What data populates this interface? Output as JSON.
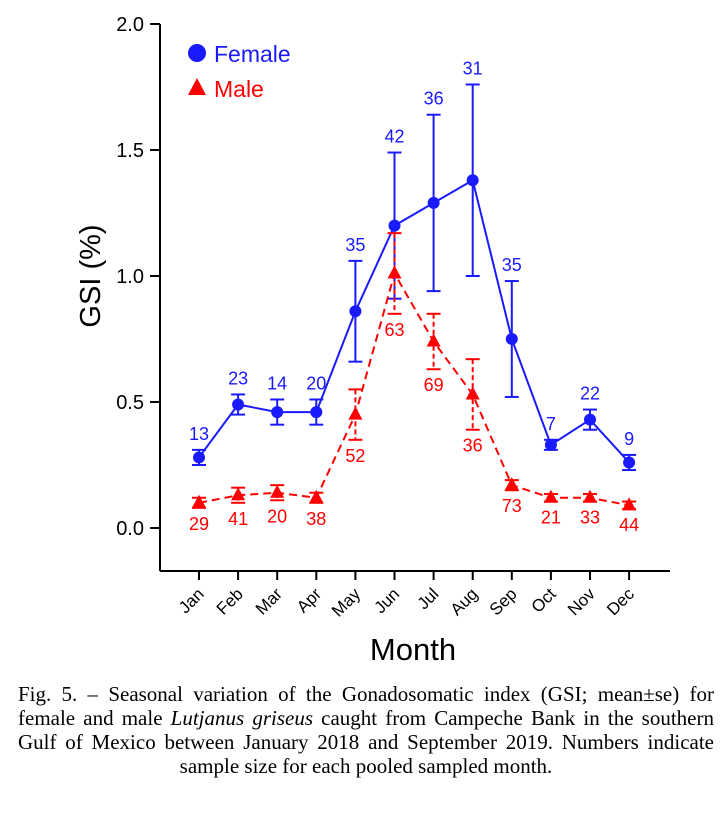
{
  "chart_data": {
    "type": "line",
    "xlabel": "Month",
    "ylabel": "GSI (%)",
    "ylim": [
      0.0,
      2.0
    ],
    "yticks": [
      "0.0",
      "0.5",
      "1.0",
      "1.5",
      "2.0"
    ],
    "categories": [
      "Jan",
      "Feb",
      "Mar",
      "Apr",
      "May",
      "Jun",
      "Jul",
      "Aug",
      "Sep",
      "Oct",
      "Nov",
      "Dec"
    ],
    "legend_position": "top-left",
    "series": [
      {
        "name": "Female",
        "color": "#1a1aff",
        "marker": "circle",
        "line_style": "solid",
        "label_position": "above",
        "values": [
          0.28,
          0.49,
          0.46,
          0.46,
          0.86,
          1.2,
          1.29,
          1.38,
          0.75,
          0.33,
          0.43,
          0.26
        ],
        "error": [
          0.03,
          0.04,
          0.05,
          0.05,
          0.2,
          0.29,
          0.35,
          0.38,
          0.23,
          0.02,
          0.04,
          0.03
        ],
        "sample_sizes": [
          "13",
          "23",
          "14",
          "20",
          "35",
          "42",
          "36",
          "31",
          "35",
          "7",
          "22",
          "9"
        ]
      },
      {
        "name": "Male",
        "color": "#ff0000",
        "marker": "triangle",
        "line_style": "dashed",
        "label_position": "below",
        "values": [
          0.1,
          0.13,
          0.14,
          0.12,
          0.45,
          1.01,
          0.74,
          0.53,
          0.17,
          0.12,
          0.12,
          0.09
        ],
        "error": [
          0.02,
          0.03,
          0.03,
          0.02,
          0.1,
          0.16,
          0.11,
          0.14,
          0.02,
          0.015,
          0.015,
          0.015
        ],
        "sample_sizes": [
          "29",
          "41",
          "20",
          "38",
          "52",
          "63",
          "69",
          "36",
          "73",
          "21",
          "33",
          "44"
        ]
      }
    ]
  },
  "caption": {
    "prefix": "Fig. 5. – Seasonal variation of the Gonadosomatic index (GSI; mean±se) for female and male ",
    "species": "Lutjanus griseus",
    "suffix": " caught from Campeche Bank in the southern Gulf of Mexico between January 2018 and September 2019. Numbers indicate sample size for each pooled sampled month."
  }
}
